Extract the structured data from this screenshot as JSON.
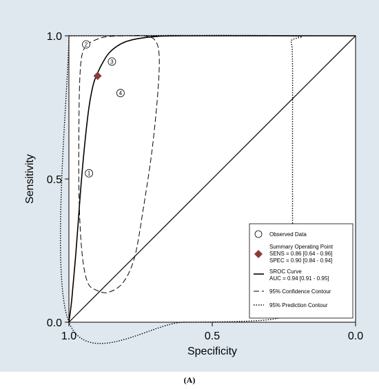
{
  "caption": "(A)",
  "chart_data": {
    "type": "scatter",
    "title": "",
    "xlabel": "Specificity",
    "ylabel": "Sensitivity",
    "xlim": [
      1.0,
      0.0
    ],
    "ylim": [
      0.0,
      1.0
    ],
    "x_ticks": [
      "1.0",
      "0.5",
      "0.0"
    ],
    "y_ticks": [
      "0.0",
      "0.5",
      "1.0"
    ],
    "grid": false,
    "legend_position": "bottom-right",
    "observed_data": [
      {
        "label": "1",
        "specificity": 0.93,
        "sensitivity": 0.52
      },
      {
        "label": "2",
        "specificity": 0.94,
        "sensitivity": 0.97
      },
      {
        "label": "3",
        "specificity": 0.85,
        "sensitivity": 0.91
      },
      {
        "label": "4",
        "specificity": 0.82,
        "sensitivity": 0.8
      }
    ],
    "summary_point": {
      "specificity": 0.9,
      "sensitivity": 0.86
    },
    "sroc_curve": [
      [
        1.0,
        0.0
      ],
      [
        0.99,
        0.08
      ],
      [
        0.975,
        0.25
      ],
      [
        0.96,
        0.45
      ],
      [
        0.945,
        0.62
      ],
      [
        0.93,
        0.75
      ],
      [
        0.915,
        0.83
      ],
      [
        0.9,
        0.87
      ],
      [
        0.88,
        0.91
      ],
      [
        0.86,
        0.94
      ],
      [
        0.83,
        0.965
      ],
      [
        0.8,
        0.98
      ],
      [
        0.76,
        0.99
      ],
      [
        0.7,
        0.997
      ],
      [
        0.6,
        1.0
      ],
      [
        0.0,
        1.0
      ]
    ],
    "confidence_contour": [
      [
        0.94,
        0.97
      ],
      [
        0.88,
        0.995
      ],
      [
        0.8,
        1.0
      ],
      [
        0.74,
        1.0
      ],
      [
        0.7,
        0.985
      ],
      [
        0.685,
        0.93
      ],
      [
        0.69,
        0.8
      ],
      [
        0.71,
        0.6
      ],
      [
        0.74,
        0.4
      ],
      [
        0.77,
        0.23
      ],
      [
        0.81,
        0.14
      ],
      [
        0.86,
        0.105
      ],
      [
        0.9,
        0.11
      ],
      [
        0.935,
        0.14
      ],
      [
        0.955,
        0.25
      ],
      [
        0.965,
        0.45
      ],
      [
        0.965,
        0.7
      ],
      [
        0.962,
        0.85
      ],
      [
        0.955,
        0.93
      ],
      [
        0.94,
        0.97
      ]
    ],
    "prediction_contour": [
      [
        1.0,
        1.0
      ],
      [
        0.25,
        1.0
      ],
      [
        0.225,
        0.98
      ],
      [
        0.22,
        0.9
      ],
      [
        0.22,
        0.7
      ],
      [
        0.22,
        0.4
      ],
      [
        0.22,
        0.15
      ],
      [
        0.225,
        0.05
      ],
      [
        0.25,
        0.02
      ],
      [
        0.35,
        0.005
      ],
      [
        0.6,
        0.0
      ],
      [
        1.0,
        0.0
      ],
      [
        1.0,
        1.0
      ]
    ],
    "legend": {
      "observed": "Observed Data",
      "summary_title": "Summary Operating Point",
      "sens": "SENS = 0.86 [0.64 - 0.96]",
      "spec": "SPEC = 0.90 [0.84 - 0.94]",
      "sroc_title": "SROC Curve",
      "auc": "AUC = 0.94 [0.91 - 0.95]",
      "confidence": "95% Confidence Contour",
      "prediction": "95% Prediction Contour"
    },
    "colors": {
      "background": "#dfe8ee",
      "summary_marker": "#8b3a3a",
      "lines": "#000000"
    }
  }
}
